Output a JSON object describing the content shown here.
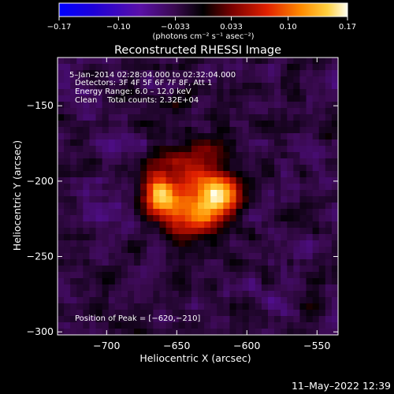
{
  "chart_data": {
    "type": "heatmap",
    "title": "Reconstructed RHESSI Image",
    "xlabel": "Heliocentric X (arcsec)",
    "ylabel": "Heliocentric Y (arcsec)",
    "xlim": [
      -735,
      -535
    ],
    "ylim": [
      -302,
      -118
    ],
    "x_ticks": [
      -700,
      -650,
      -600,
      -550
    ],
    "x_tick_labels": [
      "−700",
      "−650",
      "−600",
      "−550"
    ],
    "y_ticks": [
      -150,
      -200,
      -250,
      -300
    ],
    "y_tick_labels": [
      "−150",
      "−200",
      "−250",
      "−300"
    ],
    "colorbar": {
      "range": [
        -0.17,
        0.17
      ],
      "ticks": [
        -0.17,
        -0.1,
        -0.033,
        0.033,
        0.1,
        0.17
      ],
      "tick_labels": [
        "−0.17",
        "−0.10",
        "−0.033",
        "0.033",
        "0.10",
        "0.17"
      ],
      "unit_label": "(photons cm⁻² s⁻¹ asec⁻²)"
    },
    "annotations": {
      "time": "5–Jan–2014 02:28:04.000 to 02:32:04.000",
      "detectors": "Detectors: 3F 4F 5F 6F 7F 8F, Att 1",
      "energy": "Energy Range: 6.0 – 12.0 keV",
      "clean": "Clean    Total counts: 2.32E+04",
      "peak": "Position of Peak = [−620,−210]"
    },
    "sources": [
      {
        "x": -663,
        "y": -210,
        "peak": 0.15,
        "sigma": 8
      },
      {
        "x": -620,
        "y": -210,
        "peak": 0.17,
        "sigma": 10
      },
      {
        "x": -640,
        "y": -222,
        "peak": 0.12,
        "sigma": 12
      },
      {
        "x": -650,
        "y": -195,
        "peak": 0.07,
        "sigma": 14
      },
      {
        "x": -625,
        "y": -180,
        "peak": 0.05,
        "sigma": 10
      }
    ],
    "grid": false
  },
  "footer": {
    "timestamp": "11–May–2022 12:39"
  }
}
